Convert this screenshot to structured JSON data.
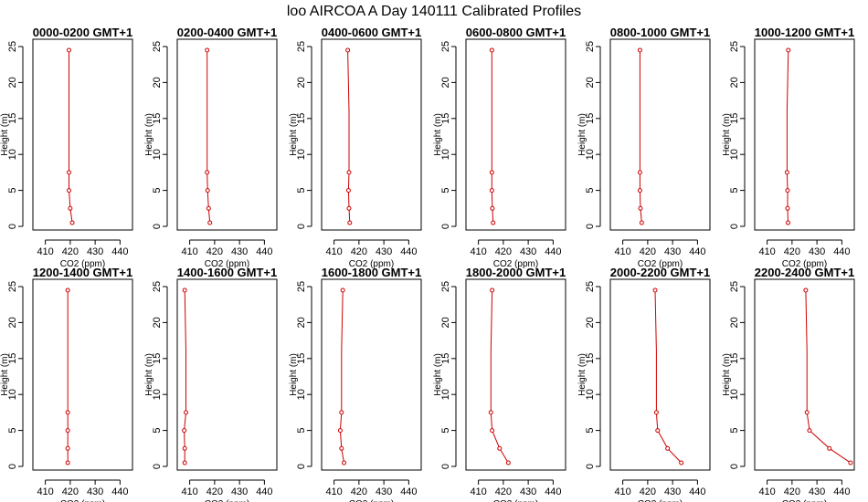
{
  "title": "loo AIRCOA A  Day 140111  Calibrated Profiles",
  "colors": {
    "profile": "#cc0000",
    "axis": "#000000",
    "background": "#ffffff"
  },
  "chart_data": {
    "type": "line",
    "xlabel": "CO2 (ppm)",
    "ylabel": "Height (m)",
    "xlim": [
      405,
      445
    ],
    "ylim": [
      0,
      25
    ],
    "xticks": [
      410,
      420,
      430,
      440
    ],
    "yticks": [
      0,
      5,
      10,
      15,
      20,
      25
    ],
    "panels": [
      {
        "title": "0000-0200 GMT+1",
        "points": [
          [
            419.5,
            24.5
          ],
          [
            419.5,
            16
          ],
          [
            419.5,
            7.5
          ],
          [
            419.5,
            5
          ],
          [
            420.0,
            2.5
          ],
          [
            420.8,
            0.5
          ]
        ]
      },
      {
        "title": "0200-0400 GMT+1",
        "points": [
          [
            417.0,
            24.5
          ],
          [
            417.0,
            16
          ],
          [
            417.0,
            7.5
          ],
          [
            417.2,
            5
          ],
          [
            417.6,
            2.5
          ],
          [
            418.1,
            0.5
          ]
        ]
      },
      {
        "title": "0400-0600 GMT+1",
        "points": [
          [
            415.5,
            24.5
          ],
          [
            416.0,
            16
          ],
          [
            416.0,
            7.5
          ],
          [
            415.8,
            5
          ],
          [
            416.0,
            2.5
          ],
          [
            416.3,
            0.5
          ]
        ]
      },
      {
        "title": "0600-0800 GMT+1",
        "points": [
          [
            415.4,
            24.5
          ],
          [
            415.4,
            16
          ],
          [
            415.4,
            7.5
          ],
          [
            415.4,
            5
          ],
          [
            415.6,
            2.5
          ],
          [
            415.9,
            0.5
          ]
        ]
      },
      {
        "title": "0800-1000 GMT+1",
        "points": [
          [
            416.9,
            24.5
          ],
          [
            416.9,
            16
          ],
          [
            416.9,
            7.5
          ],
          [
            416.9,
            5
          ],
          [
            417.1,
            2.5
          ],
          [
            417.6,
            0.5
          ]
        ]
      },
      {
        "title": "1000-1200 GMT+1",
        "points": [
          [
            418.5,
            24.5
          ],
          [
            418.0,
            16
          ],
          [
            418.0,
            7.5
          ],
          [
            418.2,
            5
          ],
          [
            418.2,
            2.5
          ],
          [
            418.4,
            0.5
          ]
        ]
      },
      {
        "title": "1200-1400 GMT+1",
        "points": [
          [
            419.0,
            24.5
          ],
          [
            419.0,
            16
          ],
          [
            419.0,
            7.5
          ],
          [
            419.0,
            5
          ],
          [
            419.0,
            2.5
          ],
          [
            419.0,
            0.5
          ]
        ]
      },
      {
        "title": "1400-1600 GMT+1",
        "points": [
          [
            408.0,
            24.5
          ],
          [
            408.5,
            16
          ],
          [
            408.5,
            7.5
          ],
          [
            407.8,
            5
          ],
          [
            408.0,
            2.5
          ],
          [
            408.0,
            0.5
          ]
        ]
      },
      {
        "title": "1600-1800 GMT+1",
        "points": [
          [
            413.5,
            24.5
          ],
          [
            413.0,
            16
          ],
          [
            413.0,
            7.5
          ],
          [
            412.5,
            5
          ],
          [
            413.0,
            2.5
          ],
          [
            414.0,
            0.5
          ]
        ]
      },
      {
        "title": "1800-2000 GMT+1",
        "points": [
          [
            415.5,
            24.5
          ],
          [
            415.0,
            16
          ],
          [
            415.0,
            7.5
          ],
          [
            415.5,
            5
          ],
          [
            418.5,
            2.5
          ],
          [
            422.0,
            0.5
          ]
        ]
      },
      {
        "title": "2000-2200 GMT+1",
        "points": [
          [
            423.0,
            24.5
          ],
          [
            423.5,
            16
          ],
          [
            423.5,
            7.5
          ],
          [
            424.0,
            5
          ],
          [
            428.0,
            2.5
          ],
          [
            433.5,
            0.5
          ]
        ]
      },
      {
        "title": "2200-2400 GMT+1",
        "points": [
          [
            425.5,
            24.5
          ],
          [
            426.0,
            16
          ],
          [
            426.0,
            7.5
          ],
          [
            427.0,
            5
          ],
          [
            435.0,
            2.5
          ],
          [
            443.5,
            0.5
          ]
        ]
      }
    ]
  }
}
